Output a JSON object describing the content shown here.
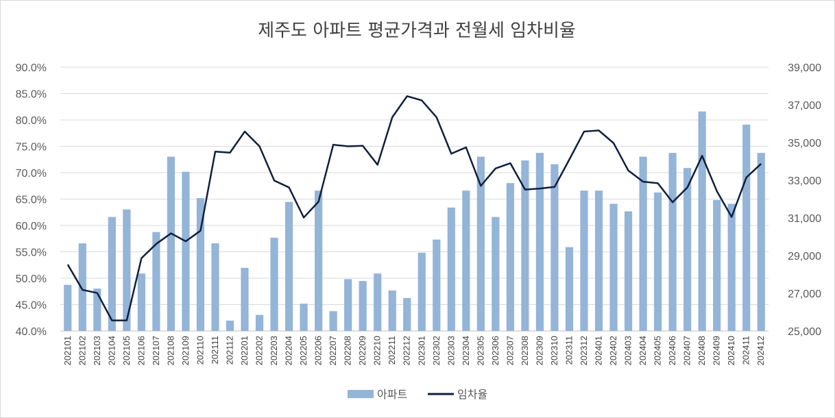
{
  "chart_data": {
    "type": "bar+line",
    "title": "제주도 아파트 평균가격과 전월세 임차비율",
    "categories": [
      "202101",
      "202102",
      "202103",
      "202104",
      "202105",
      "202106",
      "202107",
      "202108",
      "202109",
      "202110",
      "202111",
      "202112",
      "202201",
      "202202",
      "202203",
      "202204",
      "202205",
      "202206",
      "202207",
      "202208",
      "202209",
      "202210",
      "202211",
      "202212",
      "202301",
      "202302",
      "202303",
      "202304",
      "202305",
      "202306",
      "202307",
      "202308",
      "202309",
      "202310",
      "202311",
      "202312",
      "202401",
      "202402",
      "202403",
      "202404",
      "202405",
      "202406",
      "202407",
      "202408",
      "202409",
      "202410",
      "202411",
      "202412"
    ],
    "series": [
      {
        "name": "아파트",
        "kind": "bar",
        "axis": "right",
        "color": "#94b4d8",
        "values": [
          27450,
          29650,
          27250,
          31050,
          31450,
          28050,
          30250,
          34250,
          33450,
          32050,
          29650,
          25550,
          28350,
          25850,
          29950,
          31850,
          26450,
          32450,
          26050,
          27750,
          27650,
          28050,
          27150,
          26750,
          29150,
          29850,
          31550,
          32450,
          34250,
          31050,
          32850,
          34050,
          34450,
          33850,
          29450,
          32450,
          32450,
          31750,
          31350,
          34250,
          32350,
          34450,
          33650,
          36650,
          31950,
          31750,
          35950,
          34450
        ]
      },
      {
        "name": "임차율",
        "kind": "line",
        "axis": "left",
        "color": "#0f1f3d",
        "values": [
          52.6,
          47.8,
          47.2,
          42.0,
          42.0,
          53.8,
          56.5,
          58.5,
          57.0,
          59.0,
          74.0,
          73.8,
          77.8,
          75.0,
          68.5,
          67.2,
          61.5,
          64.5,
          75.3,
          75.0,
          75.1,
          71.5,
          80.5,
          84.5,
          83.7,
          80.5,
          73.6,
          74.8,
          67.5,
          70.8,
          71.8,
          66.8,
          67.0,
          67.3,
          72.5,
          77.8,
          78.0,
          75.6,
          70.4,
          68.3,
          68.0,
          64.4,
          67.2,
          73.2,
          66.5,
          61.6,
          69.1,
          71.7
        ]
      }
    ],
    "yleft": {
      "ticks": [
        "90.0%",
        "85.0%",
        "80.0%",
        "75.0%",
        "70.0%",
        "65.0%",
        "60.0%",
        "55.0%",
        "50.0%",
        "45.0%",
        "40.0%"
      ],
      "ylim": [
        40,
        90
      ]
    },
    "yright": {
      "ticks": [
        "39,000",
        "37,000",
        "35,000",
        "33,000",
        "31,000",
        "29,000",
        "27,000",
        "25,000"
      ],
      "ylim": [
        25000,
        39000
      ]
    },
    "grid": true,
    "legend_position": "bottom",
    "legend": [
      {
        "label": "아파트",
        "swatch": "bar",
        "color": "#94b4d8"
      },
      {
        "label": "임차율",
        "swatch": "line",
        "color": "#0f1f3d"
      }
    ]
  }
}
